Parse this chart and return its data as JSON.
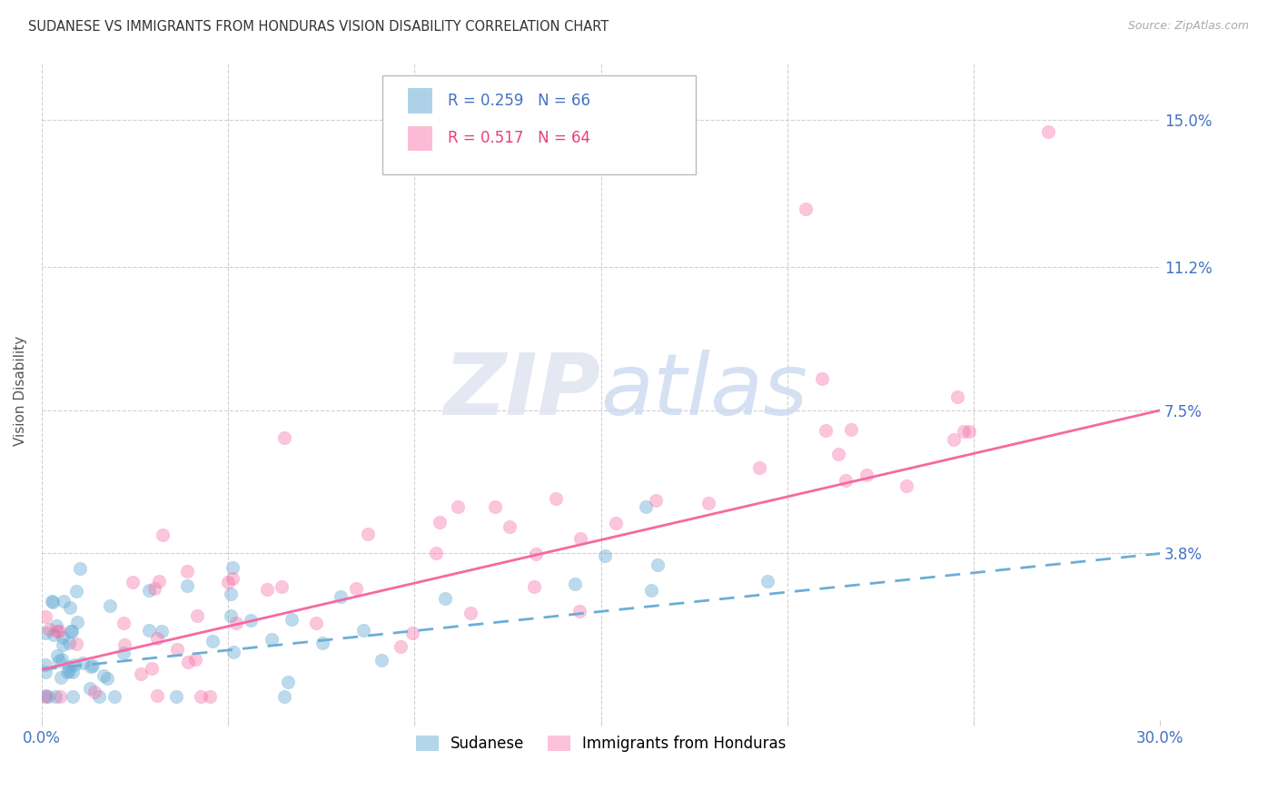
{
  "title": "SUDANESE VS IMMIGRANTS FROM HONDURAS VISION DISABILITY CORRELATION CHART",
  "source": "Source: ZipAtlas.com",
  "ylabel": "Vision Disability",
  "xlim": [
    0.0,
    0.3
  ],
  "ylim": [
    -0.005,
    0.165
  ],
  "yticks": [
    0.038,
    0.075,
    0.112,
    0.15
  ],
  "ytick_labels": [
    "3.8%",
    "7.5%",
    "11.2%",
    "15.0%"
  ],
  "xtick_positions": [
    0.0,
    0.05,
    0.1,
    0.15,
    0.2,
    0.25,
    0.3
  ],
  "xtick_labels": [
    "0.0%",
    "",
    "",
    "",
    "",
    "",
    "30.0%"
  ],
  "legend_label1": "Sudanese",
  "legend_label2": "Immigrants from Honduras",
  "sudanese_color": "#6baed6",
  "honduras_color": "#f768a1",
  "axis_label_color": "#4472c4",
  "sudanese_R": 0.259,
  "sudanese_N": 66,
  "honduras_R": 0.517,
  "honduras_N": 64,
  "sud_trend_start_y": 0.008,
  "sud_trend_end_y": 0.038,
  "hon_trend_start_y": 0.008,
  "hon_trend_end_y": 0.075
}
